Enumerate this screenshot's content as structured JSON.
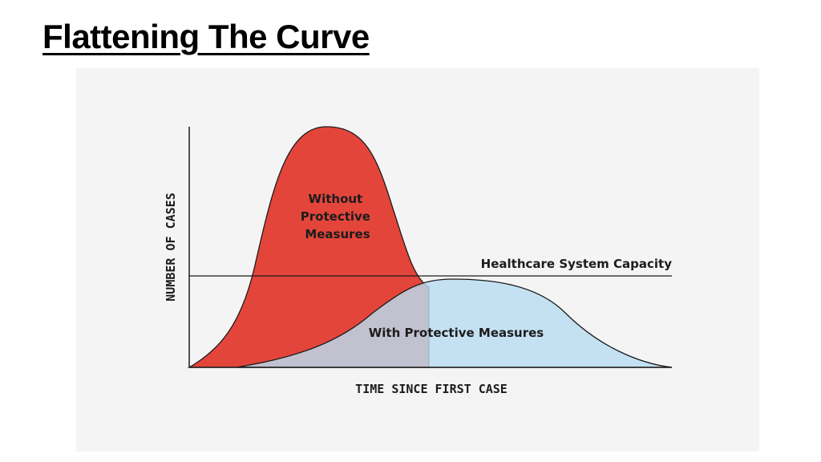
{
  "slide": {
    "title": "Flattening The Curve"
  },
  "chart_data": {
    "type": "area",
    "xlabel": "TIME SINCE FIRST CASE",
    "ylabel": "NUMBER OF CASES",
    "capacity_label": "Healthcare System Capacity",
    "capacity_level": 0.385,
    "grid": false,
    "series": [
      {
        "name": "Without Protective Measures",
        "label_lines": [
          "Without",
          "Protective",
          "Measures"
        ],
        "color": "#e4453b",
        "shape": "sharp peak, exceeds capacity",
        "peak_level": 1.0
      },
      {
        "name": "With Protective Measures",
        "label_lines": [
          "With Protective Measures"
        ],
        "color": "#b9ddf1",
        "shape": "flattened wide curve, stays near capacity",
        "peak_level": 0.37
      }
    ],
    "colors": {
      "axis": "#1c1c1c",
      "red_stroke": "#1c1c1c",
      "blue_stroke": "#1c1c1c"
    }
  }
}
